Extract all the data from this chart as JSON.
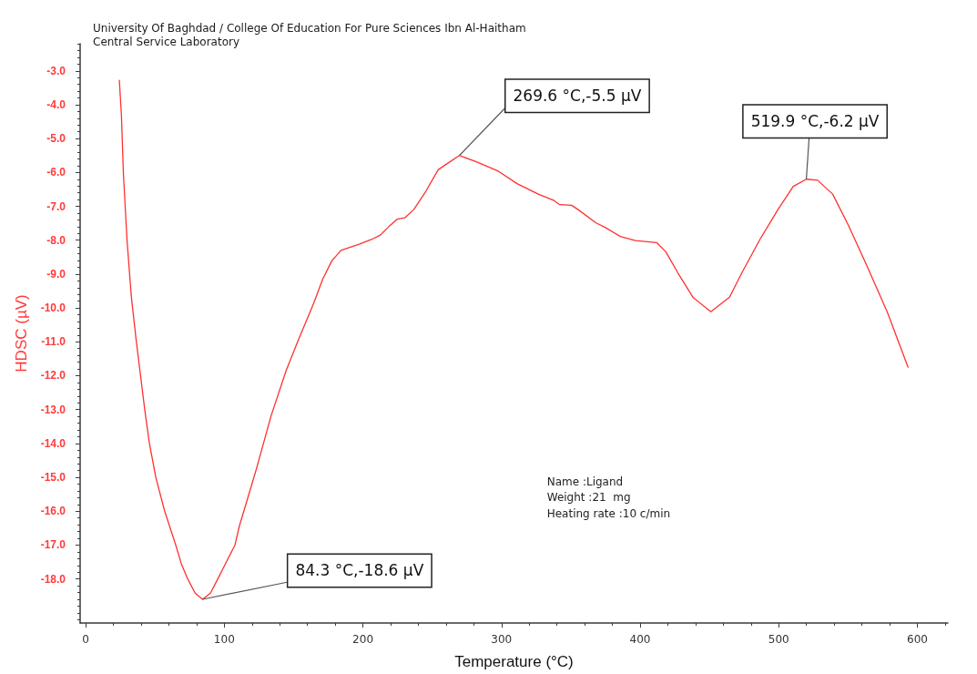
{
  "chart_data": {
    "type": "line",
    "title": "University Of Baghdad / College Of Education For Pure Sciences Ibn Al-Haitham",
    "subtitle": "Central Service Laboratory",
    "xlabel": "Temperature (°C)",
    "ylabel": "HDSC (µV)",
    "annotations": [
      {
        "text": "84.3 °C,-18.6 µV",
        "x": 84.3,
        "y": -18.6
      },
      {
        "text": "269.6 °C,-5.5 µV",
        "x": 269.6,
        "y": -5.5
      },
      {
        "text": "519.9 °C,-6.2 µV",
        "x": 519.9,
        "y": -6.2
      },
      "Name :Ligand",
      "Weight :21  mg",
      "Heating rate :10 c/min"
    ],
    "x": [
      24.3,
      25.8,
      27.2,
      29.8,
      33.0,
      36.3,
      39.6,
      42.6,
      46.0,
      50.6,
      57.0,
      65.0,
      69.0,
      73.6,
      79.0,
      84.3,
      90.0,
      95.3,
      101.5,
      107.7,
      110.8,
      122.9,
      133.8,
      144.7,
      153.5,
      164.5,
      171.0,
      177.6,
      184.2,
      197.3,
      206.1,
      212.6,
      219.2,
      224.7,
      230.2,
      236.8,
      245.5,
      254.3,
      260.8,
      269.6,
      282.7,
      298.0,
      311.2,
      326.5,
      337.5,
      341.9,
      350.6,
      355.0,
      368.2,
      374.7,
      385.7,
      396.6,
      411.9,
      418.5,
      427.3,
      438.2,
      451.0,
      464.5,
      473.3,
      486.4,
      499.5,
      510.5,
      519.9,
      528.0,
      538.9,
      549.9,
      563.0,
      578.4,
      593.3
    ],
    "values": [
      -3.28,
      -4.31,
      -6.01,
      -7.98,
      -9.69,
      -10.9,
      -12.0,
      -13.0,
      -14.0,
      -15.0,
      -16.0,
      -17.0,
      -17.55,
      -18.0,
      -18.42,
      -18.6,
      -18.42,
      -18.0,
      -17.5,
      -17.0,
      -16.45,
      -14.79,
      -13.18,
      -11.84,
      -10.94,
      -9.86,
      -9.15,
      -8.61,
      -8.3,
      -8.12,
      -7.98,
      -7.85,
      -7.58,
      -7.38,
      -7.34,
      -7.09,
      -6.55,
      -5.92,
      -5.74,
      -5.5,
      -5.7,
      -5.97,
      -6.33,
      -6.64,
      -6.82,
      -6.95,
      -6.97,
      -7.09,
      -7.49,
      -7.62,
      -7.89,
      -8.01,
      -8.07,
      -8.34,
      -8.97,
      -9.69,
      -10.11,
      -9.68,
      -8.97,
      -7.98,
      -7.09,
      -6.41,
      -6.2,
      -6.23,
      -6.64,
      -7.53,
      -8.7,
      -10.13,
      -11.75
    ],
    "color": "#ff3030",
    "xlim": [
      -4,
      622
    ],
    "ylim": [
      -19.3,
      -2.2
    ],
    "xticks": [
      0,
      {
        "value": 20,
        "label": null
      },
      {
        "value": 40,
        "label": null
      },
      {
        "value": 60,
        "label": null
      },
      {
        "value": 80,
        "label": null
      },
      100,
      {
        "value": 120,
        "label": null
      },
      {
        "value": 140,
        "label": null
      },
      {
        "value": 160,
        "label": null
      },
      {
        "value": 180,
        "label": null
      },
      200,
      {
        "value": 220,
        "label": null
      },
      {
        "value": 240,
        "label": null
      },
      {
        "value": 260,
        "label": null
      },
      {
        "value": 280,
        "label": null
      },
      300,
      {
        "value": 320,
        "label": null
      },
      {
        "value": 340,
        "label": null
      },
      {
        "value": 360,
        "label": null
      },
      {
        "value": 380,
        "label": null
      },
      400,
      {
        "value": 420,
        "label": null
      },
      {
        "value": 440,
        "label": null
      },
      {
        "value": 460,
        "label": null
      },
      {
        "value": 480,
        "label": null
      },
      500,
      {
        "value": 520,
        "label": null
      },
      {
        "value": 540,
        "label": null
      },
      {
        "value": 560,
        "label": null
      },
      {
        "value": 580,
        "label": null
      },
      600,
      {
        "value": 620,
        "label": null
      }
    ],
    "yticks": [
      {
        "value": -19.2,
        "label": null
      },
      {
        "value": -19,
        "label": null
      },
      {
        "value": -18.8,
        "label": null
      },
      {
        "value": -18.6,
        "label": null
      },
      {
        "value": -18.4,
        "label": null
      },
      {
        "value": -18.2,
        "label": null
      },
      {
        "value": -18,
        "label": "-18.0"
      },
      {
        "value": -17.8,
        "label": null
      },
      {
        "value": -17.6,
        "label": null
      },
      {
        "value": -17.4,
        "label": null
      },
      {
        "value": -17.2,
        "label": null
      },
      {
        "value": -17,
        "label": "-17.0"
      },
      {
        "value": -16.8,
        "label": null
      },
      {
        "value": -16.6,
        "label": null
      },
      {
        "value": -16.4,
        "label": null
      },
      {
        "value": -16.2,
        "label": null
      },
      {
        "value": -16,
        "label": "-16.0"
      },
      {
        "value": -15.8,
        "label": null
      },
      {
        "value": -15.6,
        "label": null
      },
      {
        "value": -15.4,
        "label": null
      },
      {
        "value": -15.2,
        "label": null
      },
      {
        "value": -15,
        "label": "-15.0"
      },
      {
        "value": -14.8,
        "label": null
      },
      {
        "value": -14.6,
        "label": null
      },
      {
        "value": -14.4,
        "label": null
      },
      {
        "value": -14.2,
        "label": null
      },
      {
        "value": -14,
        "label": "-14.0"
      },
      {
        "value": -13.8,
        "label": null
      },
      {
        "value": -13.6,
        "label": null
      },
      {
        "value": -13.4,
        "label": null
      },
      {
        "value": -13.2,
        "label": null
      },
      {
        "value": -13,
        "label": "-13.0"
      },
      {
        "value": -12.8,
        "label": null
      },
      {
        "value": -12.6,
        "label": null
      },
      {
        "value": -12.4,
        "label": null
      },
      {
        "value": -12.2,
        "label": null
      },
      {
        "value": -12,
        "label": "-12.0"
      },
      {
        "value": -11.8,
        "label": null
      },
      {
        "value": -11.6,
        "label": null
      },
      {
        "value": -11.4,
        "label": null
      },
      {
        "value": -11.2,
        "label": null
      },
      {
        "value": -11,
        "label": "-11.0"
      },
      {
        "value": -10.8,
        "label": null
      },
      {
        "value": -10.6,
        "label": null
      },
      {
        "value": -10.4,
        "label": null
      },
      {
        "value": -10.2,
        "label": null
      },
      {
        "value": -10,
        "label": "-10.0"
      },
      {
        "value": -9.8,
        "label": null
      },
      {
        "value": -9.6,
        "label": null
      },
      {
        "value": -9.4,
        "label": null
      },
      {
        "value": -9.2,
        "label": null
      },
      {
        "value": -9,
        "label": "-9.0"
      },
      {
        "value": -8.8,
        "label": null
      },
      {
        "value": -8.6,
        "label": null
      },
      {
        "value": -8.4,
        "label": null
      },
      {
        "value": -8.2,
        "label": null
      },
      {
        "value": -8,
        "label": "-8.0"
      },
      {
        "value": -7.8,
        "label": null
      },
      {
        "value": -7.6,
        "label": null
      },
      {
        "value": -7.4,
        "label": null
      },
      {
        "value": -7.2,
        "label": null
      },
      {
        "value": -7,
        "label": "-7.0"
      },
      {
        "value": -6.8,
        "label": null
      },
      {
        "value": -6.6,
        "label": null
      },
      {
        "value": -6.4,
        "label": null
      },
      {
        "value": -6.2,
        "label": null
      },
      {
        "value": -6,
        "label": "-6.0"
      },
      {
        "value": -5.8,
        "label": null
      },
      {
        "value": -5.6,
        "label": null
      },
      {
        "value": -5.4,
        "label": null
      },
      {
        "value": -5.2,
        "label": null
      },
      {
        "value": -5,
        "label": "-5.0"
      },
      {
        "value": -4.8,
        "label": null
      },
      {
        "value": -4.6,
        "label": null
      },
      {
        "value": -4.4,
        "label": null
      },
      {
        "value": -4.2,
        "label": null
      },
      {
        "value": -4,
        "label": "-4.0"
      },
      {
        "value": -3.8,
        "label": null
      },
      {
        "value": -3.6,
        "label": null
      },
      {
        "value": -3.4,
        "label": null
      },
      {
        "value": -3.2,
        "label": null
      },
      {
        "value": -3,
        "label": "-3.0"
      },
      {
        "value": -2.8,
        "label": null
      },
      {
        "value": -2.6,
        "label": null
      },
      {
        "value": -2.4,
        "label": null
      },
      {
        "value": -2.2,
        "label": null
      }
    ],
    "grid": false,
    "marker": "none",
    "line_style": "solid"
  }
}
